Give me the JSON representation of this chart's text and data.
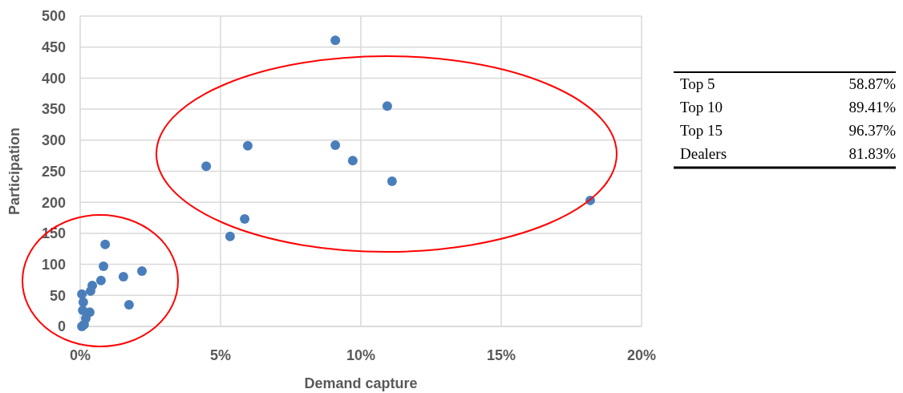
{
  "chart_data": {
    "type": "scatter",
    "xlabel": "Demand capture",
    "ylabel": "Participation",
    "x": [
      9.09,
      10.94,
      5.97,
      9.09,
      4.49,
      9.71,
      11.11,
      18.17,
      5.86,
      5.34,
      0.89,
      0.83,
      1.54,
      2.2,
      0.74,
      0.43,
      0.37,
      0.06,
      1.74,
      0.11,
      0.34,
      0.09,
      0.06,
      0.2,
      0.14
    ],
    "series": [
      {
        "color": "#4a7ebb",
        "values": [
          461,
          355,
          291,
          292,
          258,
          267,
          234,
          203,
          173,
          145,
          132,
          97,
          80,
          89,
          74,
          66,
          57,
          52,
          35,
          39,
          23,
          26,
          0,
          13,
          3
        ]
      }
    ],
    "xlim": [
      0,
      20
    ],
    "xticks": [
      {
        "value": 0,
        "label": "0%"
      },
      {
        "value": 5,
        "label": "5%"
      },
      {
        "value": 10,
        "label": "10%"
      },
      {
        "value": 15,
        "label": "15%"
      },
      {
        "value": 20,
        "label": "20%"
      }
    ],
    "ylim": [
      0,
      500
    ],
    "yticks": [
      0,
      50,
      100,
      150,
      200,
      250,
      300,
      350,
      400,
      450,
      500
    ],
    "grid": true,
    "marker": "circle",
    "annotations": [
      "Top 5",
      "58.87%",
      "Top 10",
      "89.41%",
      "Top 15",
      "96.37%",
      "Dealers",
      "81.83%"
    ]
  }
}
